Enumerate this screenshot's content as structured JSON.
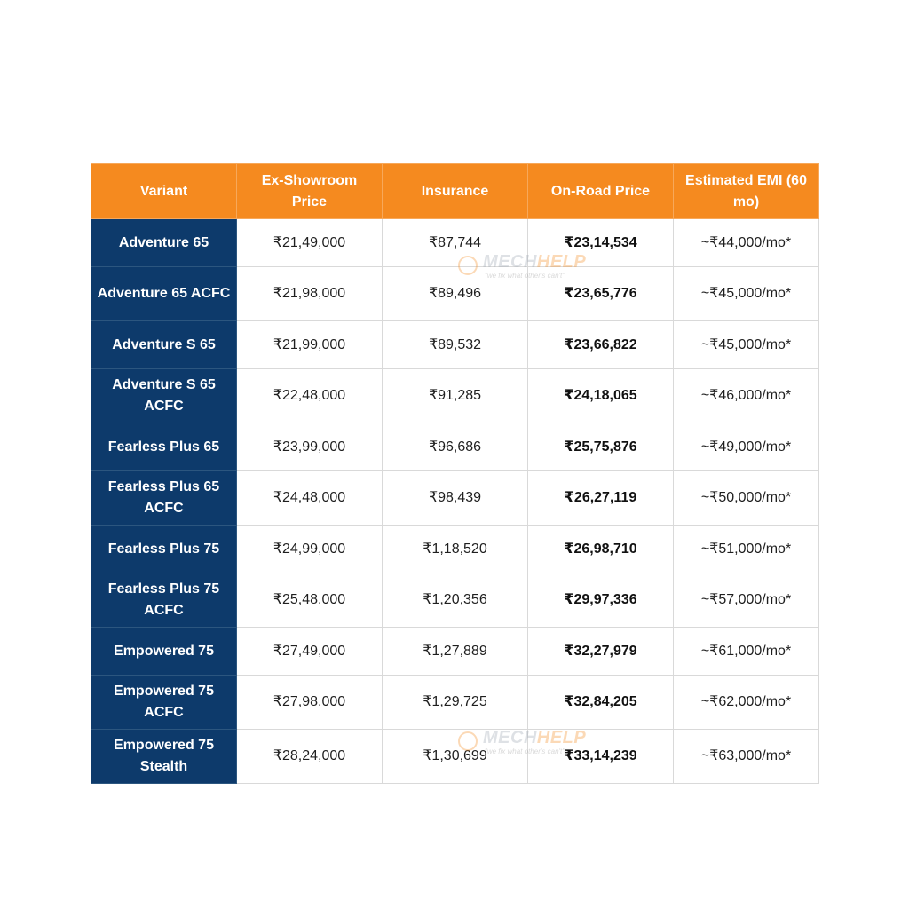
{
  "table": {
    "headers": [
      "Variant",
      "Ex-Showroom Price",
      "Insurance",
      "On-Road Price",
      "Estimated EMI (60 mo)"
    ],
    "rows": [
      {
        "variant": "Adventure 65",
        "ex_showroom": "₹21,49,000",
        "insurance": "₹87,744",
        "on_road": "₹23,14,534",
        "emi": "~₹44,000/mo*"
      },
      {
        "variant": "Adventure 65 ACFC",
        "ex_showroom": "₹21,98,000",
        "insurance": "₹89,496",
        "on_road": "₹23,65,776",
        "emi": "~₹45,000/mo*"
      },
      {
        "variant": "Adventure S 65",
        "ex_showroom": "₹21,99,000",
        "insurance": "₹89,532",
        "on_road": "₹23,66,822",
        "emi": "~₹45,000/mo*"
      },
      {
        "variant": "Adventure S 65 ACFC",
        "ex_showroom": "₹22,48,000",
        "insurance": "₹91,285",
        "on_road": "₹24,18,065",
        "emi": "~₹46,000/mo*"
      },
      {
        "variant": "Fearless Plus 65",
        "ex_showroom": "₹23,99,000",
        "insurance": "₹96,686",
        "on_road": "₹25,75,876",
        "emi": "~₹49,000/mo*"
      },
      {
        "variant": "Fearless Plus 65 ACFC",
        "ex_showroom": "₹24,48,000",
        "insurance": "₹98,439",
        "on_road": "₹26,27,119",
        "emi": "~₹50,000/mo*"
      },
      {
        "variant": "Fearless Plus 75",
        "ex_showroom": "₹24,99,000",
        "insurance": "₹1,18,520",
        "on_road": "₹26,98,710",
        "emi": "~₹51,000/mo*"
      },
      {
        "variant": "Fearless Plus 75 ACFC",
        "ex_showroom": "₹25,48,000",
        "insurance": "₹1,20,356",
        "on_road": "₹29,97,336",
        "emi": "~₹57,000/mo*"
      },
      {
        "variant": "Empowered 75",
        "ex_showroom": "₹27,49,000",
        "insurance": "₹1,27,889",
        "on_road": "₹32,27,979",
        "emi": "~₹61,000/mo*"
      },
      {
        "variant": "Empowered 75 ACFC",
        "ex_showroom": "₹27,98,000",
        "insurance": "₹1,29,725",
        "on_road": "₹32,84,205",
        "emi": "~₹62,000/mo*"
      },
      {
        "variant": "Empowered 75 Stealth",
        "ex_showroom": "₹28,24,000",
        "insurance": "₹1,30,699",
        "on_road": "₹33,14,239",
        "emi": "~₹63,000/mo*"
      }
    ]
  },
  "watermark": {
    "brand_part1": "MECH",
    "brand_part2": "HELP",
    "tagline": "\"we fix what other's can't\""
  },
  "colors": {
    "header_bg": "#f58a1f",
    "variant_bg": "#0d3a6b"
  }
}
